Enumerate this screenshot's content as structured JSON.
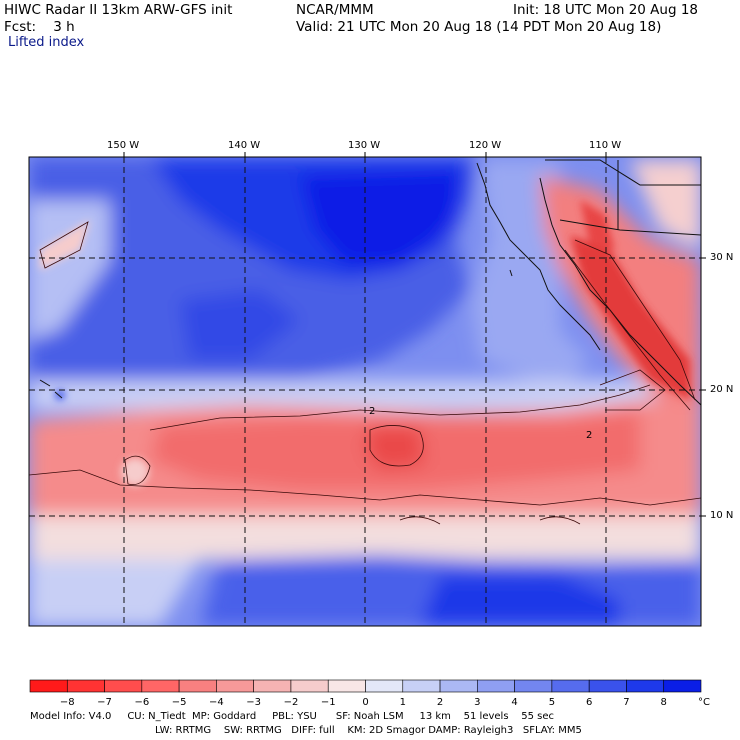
{
  "header": {
    "title": "HIWC Radar II 13km ARW-GFS init",
    "org": "NCAR/MMM",
    "init": "Init: 18 UTC Mon 20 Aug 18",
    "fcst": "Fcst:    3 h",
    "valid": "Valid: 21 UTC Mon 20 Aug 18 (14 PDT Mon 20 Aug 18)",
    "field": "Lifted index"
  },
  "map": {
    "lon_labels": [
      "150 W",
      "140 W",
      "130 W",
      "120 W",
      "110 W"
    ],
    "lat_labels": [
      "30 N",
      "20 N",
      "10 N"
    ],
    "contour_label": "2"
  },
  "colorbar": {
    "labels": [
      "−8",
      "−7",
      "−6",
      "−5",
      "−4",
      "−3",
      "−2",
      "−1",
      "0",
      "1",
      "2",
      "3",
      "4",
      "5",
      "6",
      "7",
      "8"
    ],
    "unit": "°C",
    "colors": [
      "#ff1a1a",
      "#ff3333",
      "#ff4d4d",
      "#ff6666",
      "#f88080",
      "#f79999",
      "#f6b3b3",
      "#f6cccc",
      "#f8e6e6",
      "#e3e7f8",
      "#c7d0f6",
      "#abb8f4",
      "#8f9ff2",
      "#7386f0",
      "#566cee",
      "#3a52ec",
      "#1e39ea",
      "#0a1ee6"
    ]
  },
  "model_info": {
    "line1": "Model Info: V4.0     CU: N_Tiedt  MP: Goddard     PBL: YSU      SF: Noah LSM     13 km    51 levels    55 sec",
    "line2": "LW: RRTMG    SW: RRTMG   DIFF: full    KM: 2D Smagor DAMP: Rayleigh3   SFLAY: MM5"
  }
}
